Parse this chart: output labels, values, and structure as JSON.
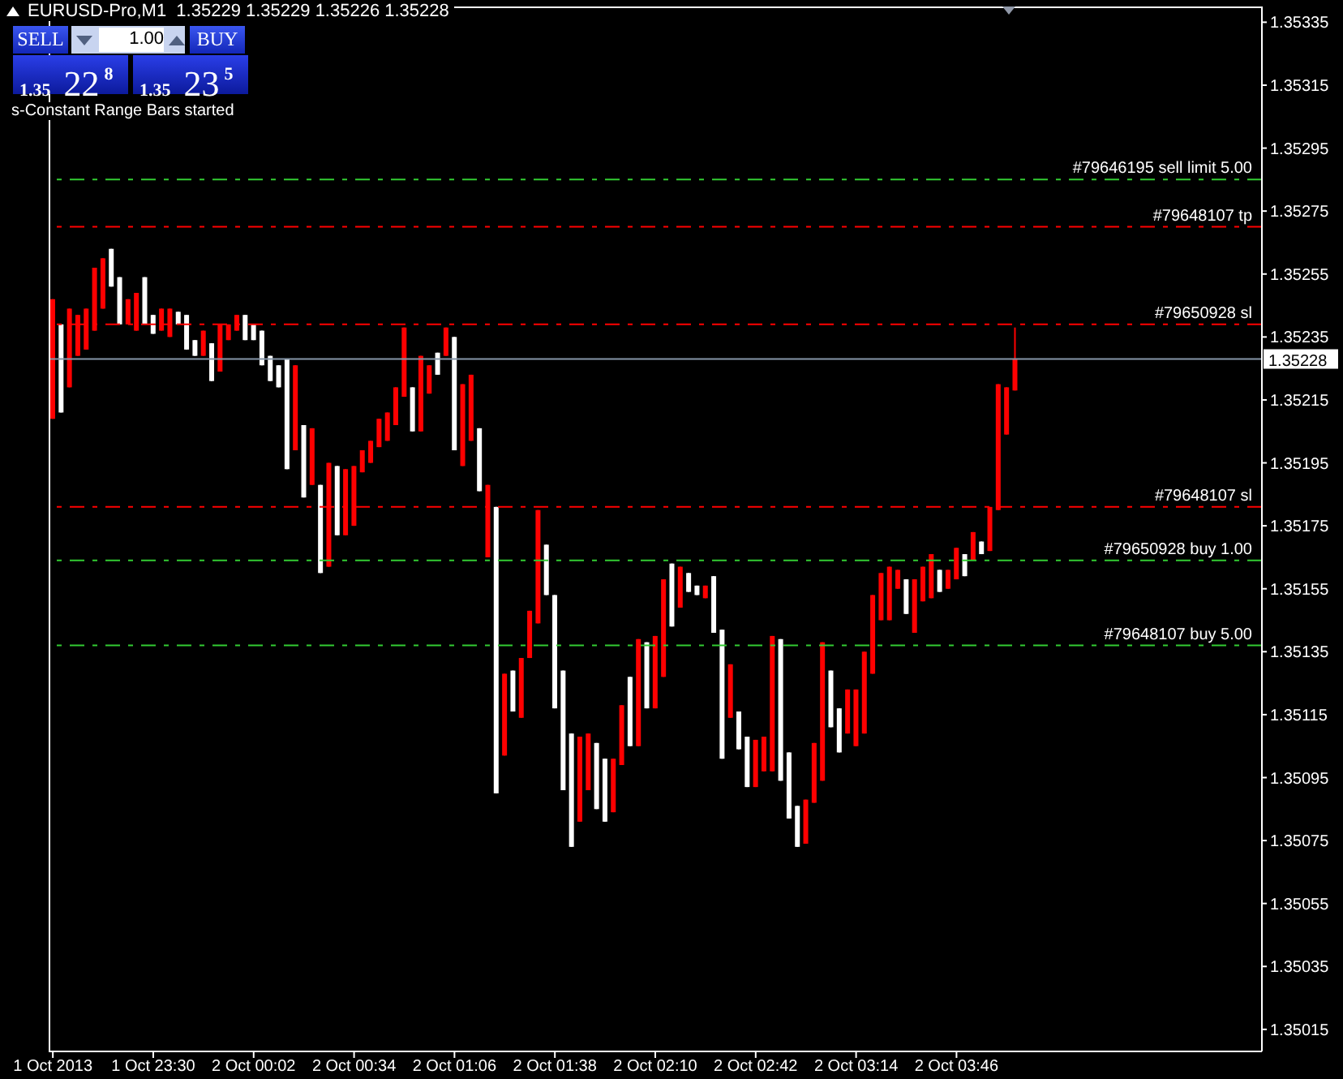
{
  "chart_data": {
    "type": "candlestick",
    "title": "EURUSD-Pro,M1  1.35229 1.35229 1.35226 1.35228",
    "annotations": [
      "SELL",
      "1.00",
      "BUY",
      "1.35 22$^{8}$",
      "1.35 23$^{5}$",
      "s-Constant Range Bars started"
    ],
    "categories": [
      "1 Oct 2013",
      null,
      null,
      null,
      null,
      null,
      null,
      null,
      null,
      null,
      null,
      null,
      "1 Oct 23:30",
      null,
      null,
      null,
      null,
      null,
      null,
      null,
      null,
      null,
      null,
      null,
      "2 Oct 00:02",
      null,
      null,
      null,
      null,
      null,
      null,
      null,
      null,
      null,
      null,
      null,
      "2 Oct 00:34",
      null,
      null,
      null,
      null,
      null,
      null,
      null,
      null,
      null,
      null,
      null,
      "2 Oct 01:06",
      null,
      null,
      null,
      null,
      null,
      null,
      null,
      null,
      null,
      null,
      null,
      "2 Oct 01:38",
      null,
      null,
      null,
      null,
      null,
      null,
      null,
      null,
      null,
      null,
      null,
      "2 Oct 02:10",
      null,
      null,
      null,
      null,
      null,
      null,
      null,
      null,
      null,
      null,
      null,
      "2 Oct 02:42",
      null,
      null,
      null,
      null,
      null,
      null,
      null,
      null,
      null,
      null,
      null,
      "2 Oct 03:14",
      null,
      null,
      null,
      null,
      null,
      null,
      null,
      null,
      null,
      null,
      null,
      "2 Oct 03:46",
      null,
      null,
      null,
      null,
      null,
      null,
      null,
      null,
      null,
      null,
      null,
      null,
      null,
      null,
      null,
      null,
      null,
      null,
      null,
      null,
      null,
      null,
      null,
      null,
      null,
      null,
      null,
      null,
      null,
      null,
      null,
      null,
      null,
      null,
      null,
      null
    ],
    "ohlc": [
      [
        1.35209,
        1.35247,
        1.35209,
        1.35247
      ],
      [
        1.35239,
        1.35239,
        1.35211,
        1.35211
      ],
      [
        1.35219,
        1.35244,
        1.35219,
        1.35244
      ],
      [
        1.35229,
        1.35242,
        1.35229,
        1.35242
      ],
      [
        1.35231,
        1.35244,
        1.35231,
        1.35244
      ],
      [
        1.35237,
        1.35257,
        1.35237,
        1.35257
      ],
      [
        1.35244,
        1.3526,
        1.35244,
        1.3526
      ],
      [
        1.35263,
        1.35263,
        1.35251,
        1.35251
      ],
      [
        1.35254,
        1.35254,
        1.35239,
        1.35239
      ],
      [
        1.35239,
        1.35247,
        1.35239,
        1.35247
      ],
      [
        1.35237,
        1.35249,
        1.35237,
        1.35249
      ],
      [
        1.35254,
        1.35254,
        1.35239,
        1.35239
      ],
      [
        1.35242,
        1.35242,
        1.35236,
        1.35236
      ],
      [
        1.35237,
        1.35244,
        1.35237,
        1.35244
      ],
      [
        1.35235,
        1.35244,
        1.35235,
        1.35244
      ],
      [
        1.35243,
        1.35243,
        1.35239,
        1.35239
      ],
      [
        1.35242,
        1.35242,
        1.35231,
        1.35231
      ],
      [
        1.35234,
        1.35234,
        1.35229,
        1.35229
      ],
      [
        1.35229,
        1.35237,
        1.35229,
        1.35237
      ],
      [
        1.35233,
        1.35233,
        1.35221,
        1.35221
      ],
      [
        1.35224,
        1.35239,
        1.35224,
        1.35239
      ],
      [
        1.35234,
        1.35239,
        1.35234,
        1.35239
      ],
      [
        1.35237,
        1.35242,
        1.35237,
        1.35242
      ],
      [
        1.35242,
        1.35242,
        1.35234,
        1.35234
      ],
      [
        1.35239,
        1.35239,
        1.35234,
        1.35234
      ],
      [
        1.35237,
        1.35237,
        1.35226,
        1.35226
      ],
      [
        1.35229,
        1.35229,
        1.35221,
        1.35221
      ],
      [
        1.35226,
        1.35226,
        1.35219,
        1.35219
      ],
      [
        1.35228,
        1.35228,
        1.35193,
        1.35193
      ],
      [
        1.35199,
        1.35226,
        1.35199,
        1.35226
      ],
      [
        1.35207,
        1.35207,
        1.35184,
        1.35184
      ],
      [
        1.35188,
        1.35206,
        1.35188,
        1.35206
      ],
      [
        1.35188,
        1.35188,
        1.3516,
        1.3516
      ],
      [
        1.35162,
        1.35195,
        1.35162,
        1.35195
      ],
      [
        1.35194,
        1.35194,
        1.35172,
        1.35172
      ],
      [
        1.35172,
        1.35193,
        1.35172,
        1.35193
      ],
      [
        1.35175,
        1.35194,
        1.35175,
        1.35194
      ],
      [
        1.35192,
        1.35199,
        1.35192,
        1.35199
      ],
      [
        1.35195,
        1.35202,
        1.35195,
        1.35202
      ],
      [
        1.352,
        1.35209,
        1.352,
        1.35209
      ],
      [
        1.35202,
        1.35211,
        1.35202,
        1.35211
      ],
      [
        1.35207,
        1.35219,
        1.35207,
        1.35219
      ],
      [
        1.35216,
        1.35238,
        1.35216,
        1.35238
      ],
      [
        1.35219,
        1.35219,
        1.35205,
        1.35205
      ],
      [
        1.35205,
        1.35229,
        1.35205,
        1.35229
      ],
      [
        1.35217,
        1.35226,
        1.35217,
        1.35226
      ],
      [
        1.3523,
        1.3523,
        1.35223,
        1.35223
      ],
      [
        1.35229,
        1.35238,
        1.35229,
        1.35238
      ],
      [
        1.35235,
        1.35235,
        1.35199,
        1.35199
      ],
      [
        1.35194,
        1.3522,
        1.35194,
        1.3522
      ],
      [
        1.35202,
        1.35223,
        1.35202,
        1.35223
      ],
      [
        1.35206,
        1.35206,
        1.35186,
        1.35186
      ],
      [
        1.35165,
        1.35188,
        1.35165,
        1.35188
      ],
      [
        1.35181,
        1.35181,
        1.3509,
        1.3509
      ],
      [
        1.35102,
        1.35128,
        1.35102,
        1.35128
      ],
      [
        1.35129,
        1.35129,
        1.35116,
        1.35116
      ],
      [
        1.35114,
        1.35133,
        1.35114,
        1.35133
      ],
      [
        1.35133,
        1.35148,
        1.35133,
        1.35148
      ],
      [
        1.35144,
        1.3518,
        1.35144,
        1.3518
      ],
      [
        1.35169,
        1.35169,
        1.35153,
        1.35153
      ],
      [
        1.35153,
        1.35153,
        1.35117,
        1.35117
      ],
      [
        1.35129,
        1.35129,
        1.35091,
        1.35091
      ],
      [
        1.35109,
        1.35109,
        1.35073,
        1.35073
      ],
      [
        1.35081,
        1.35108,
        1.35081,
        1.35108
      ],
      [
        1.35091,
        1.35109,
        1.35091,
        1.35109
      ],
      [
        1.35106,
        1.35106,
        1.35085,
        1.35085
      ],
      [
        1.35101,
        1.35101,
        1.35081,
        1.35081
      ],
      [
        1.35084,
        1.35101,
        1.35084,
        1.35101
      ],
      [
        1.35099,
        1.35118,
        1.35099,
        1.35118
      ],
      [
        1.35127,
        1.35127,
        1.35105,
        1.35105
      ],
      [
        1.35105,
        1.35139,
        1.35105,
        1.35139
      ],
      [
        1.35138,
        1.35138,
        1.35117,
        1.35117
      ],
      [
        1.35117,
        1.3514,
        1.35117,
        1.3514
      ],
      [
        1.35127,
        1.35158,
        1.35127,
        1.35158
      ],
      [
        1.35163,
        1.35163,
        1.35143,
        1.35143
      ],
      [
        1.35149,
        1.35162,
        1.35149,
        1.35162
      ],
      [
        1.3516,
        1.3516,
        1.35154,
        1.35154
      ],
      [
        1.35156,
        1.35156,
        1.35153,
        1.35153
      ],
      [
        1.35152,
        1.35156,
        1.35152,
        1.35156
      ],
      [
        1.35159,
        1.35159,
        1.35141,
        1.35141
      ],
      [
        1.35142,
        1.35142,
        1.35101,
        1.35101
      ],
      [
        1.35114,
        1.35131,
        1.35114,
        1.35131
      ],
      [
        1.35116,
        1.35116,
        1.35104,
        1.35104
      ],
      [
        1.35108,
        1.35108,
        1.35092,
        1.35092
      ],
      [
        1.35092,
        1.35107,
        1.35092,
        1.35107
      ],
      [
        1.35097,
        1.35108,
        1.35097,
        1.35108
      ],
      [
        1.35097,
        1.3514,
        1.35097,
        1.3514
      ],
      [
        1.35139,
        1.35139,
        1.35094,
        1.35094
      ],
      [
        1.35103,
        1.35103,
        1.35082,
        1.35082
      ],
      [
        1.35086,
        1.35086,
        1.35073,
        1.35073
      ],
      [
        1.35074,
        1.35088,
        1.35074,
        1.35088
      ],
      [
        1.35087,
        1.35106,
        1.35087,
        1.35106
      ],
      [
        1.35094,
        1.35138,
        1.35094,
        1.35138
      ],
      [
        1.35129,
        1.35129,
        1.35111,
        1.35111
      ],
      [
        1.35117,
        1.35117,
        1.35103,
        1.35103
      ],
      [
        1.35109,
        1.35123,
        1.35109,
        1.35123
      ],
      [
        1.35105,
        1.35123,
        1.35105,
        1.35123
      ],
      [
        1.35109,
        1.35135,
        1.35109,
        1.35135
      ],
      [
        1.35128,
        1.35153,
        1.35128,
        1.35153
      ],
      [
        1.35145,
        1.3516,
        1.35145,
        1.3516
      ],
      [
        1.35145,
        1.35162,
        1.35145,
        1.35162
      ],
      [
        1.35155,
        1.35161,
        1.35155,
        1.35161
      ],
      [
        1.35158,
        1.35158,
        1.35147,
        1.35147
      ],
      [
        1.35141,
        1.35158,
        1.35141,
        1.35158
      ],
      [
        1.35151,
        1.35162,
        1.35151,
        1.35162
      ],
      [
        1.35152,
        1.35166,
        1.35152,
        1.35166
      ],
      [
        1.35161,
        1.35161,
        1.35154,
        1.35154
      ],
      [
        1.35155,
        1.35161,
        1.35155,
        1.35161
      ],
      [
        1.35158,
        1.35168,
        1.35158,
        1.35168
      ],
      [
        1.35166,
        1.35166,
        1.35159,
        1.35159
      ],
      [
        1.35164,
        1.35173,
        1.35164,
        1.35173
      ],
      [
        1.3517,
        1.3517,
        1.35166,
        1.35166
      ],
      [
        1.35167,
        1.35181,
        1.35167,
        1.35181
      ],
      [
        1.3518,
        1.3522,
        1.3518,
        1.3522
      ],
      [
        1.35204,
        1.35219,
        1.35204,
        1.35219
      ],
      [
        1.35218,
        1.35238,
        1.35218,
        1.35228
      ],
      null,
      null,
      null,
      null,
      null,
      null,
      null,
      null,
      null,
      null,
      null,
      null,
      null,
      null,
      null,
      null,
      null,
      null,
      null,
      null,
      null,
      null,
      null,
      null,
      null,
      null,
      null,
      null,
      null
    ],
    "colors": [
      "#ff0000",
      "#ffffff",
      "#ff0000",
      "#ff0000",
      "#ff0000",
      "#ff0000",
      "#ff0000",
      "#ffffff",
      "#ffffff",
      "#ff0000",
      "#ff0000",
      "#ffffff",
      "#ffffff",
      "#ff0000",
      "#ff0000",
      "#ffffff",
      "#ffffff",
      "#ffffff",
      "#ff0000",
      "#ffffff",
      "#ff0000",
      "#ff0000",
      "#ff0000",
      "#ffffff",
      "#ffffff",
      "#ffffff",
      "#ffffff",
      "#ffffff",
      "#ffffff",
      "#ff0000",
      "#ffffff",
      "#ff0000",
      "#ffffff",
      "#ff0000",
      "#ffffff",
      "#ff0000",
      "#ff0000",
      "#ff0000",
      "#ff0000",
      "#ff0000",
      "#ff0000",
      "#ff0000",
      "#ff0000",
      "#ffffff",
      "#ff0000",
      "#ff0000",
      "#ffffff",
      "#ff0000",
      "#ffffff",
      "#ff0000",
      "#ff0000",
      "#ffffff",
      "#ff0000",
      "#ffffff",
      "#ff0000",
      "#ffffff",
      "#ff0000",
      "#ff0000",
      "#ff0000",
      "#ffffff",
      "#ffffff",
      "#ffffff",
      "#ffffff",
      "#ff0000",
      "#ff0000",
      "#ffffff",
      "#ffffff",
      "#ff0000",
      "#ff0000",
      "#ffffff",
      "#ff0000",
      "#ffffff",
      "#ff0000",
      "#ff0000",
      "#ffffff",
      "#ff0000",
      "#ffffff",
      "#ffffff",
      "#ff0000",
      "#ffffff",
      "#ffffff",
      "#ff0000",
      "#ffffff",
      "#ffffff",
      "#ff0000",
      "#ff0000",
      "#ff0000",
      "#ffffff",
      "#ffffff",
      "#ffffff",
      "#ff0000",
      "#ff0000",
      "#ff0000",
      "#ffffff",
      "#ffffff",
      "#ff0000",
      "#ff0000",
      "#ff0000",
      "#ff0000",
      "#ff0000",
      "#ff0000",
      "#ff0000",
      "#ffffff",
      "#ff0000",
      "#ff0000",
      "#ff0000",
      "#ffffff",
      "#ff0000",
      "#ff0000",
      "#ffffff",
      "#ff0000",
      "#ffffff",
      "#ff0000",
      "#ff0000",
      "#ff0000",
      "#ff0000",
      null,
      null,
      null,
      null,
      null,
      null,
      null,
      null,
      null,
      null,
      null,
      null,
      null,
      null,
      null,
      null,
      null,
      null,
      null,
      null,
      null,
      null,
      null,
      null,
      null,
      null,
      null,
      null,
      null
    ],
    "ylim": [
      1.35008,
      1.3534
    ],
    "yticks": [
      1.35015,
      1.35035,
      1.35055,
      1.35075,
      1.35095,
      1.35115,
      1.35135,
      1.35155,
      1.35175,
      1.35195,
      1.35215,
      1.35235,
      1.35255,
      1.35275,
      1.35295,
      1.35315,
      1.35335
    ],
    "ref_lines": [
      {
        "axis": "y",
        "value": 1.35285,
        "label": "#79646195 sell limit 5.00",
        "color": "#33cc33",
        "line_style": "dashed"
      },
      {
        "axis": "y",
        "value": 1.3527,
        "label": "#79648107 tp",
        "color": "#ff0000",
        "line_style": "dashed"
      },
      {
        "axis": "y",
        "value": 1.35239,
        "label": "#79650928 sl",
        "color": "#ff0000",
        "line_style": "dashed"
      },
      {
        "axis": "y",
        "value": 1.35228,
        "label": "1.35228",
        "color": "#8595a8",
        "line_style": "solid"
      },
      {
        "axis": "y",
        "value": 1.35181,
        "label": "#79648107 sl",
        "color": "#ff0000",
        "line_style": "dashed"
      },
      {
        "axis": "y",
        "value": 1.35164,
        "label": "#79650928 buy 1.00",
        "color": "#33cc33",
        "line_style": "dashed"
      },
      {
        "axis": "y",
        "value": 1.35137,
        "label": "#79648107 buy 5.00",
        "color": "#33cc33",
        "line_style": "dashed"
      }
    ]
  }
}
